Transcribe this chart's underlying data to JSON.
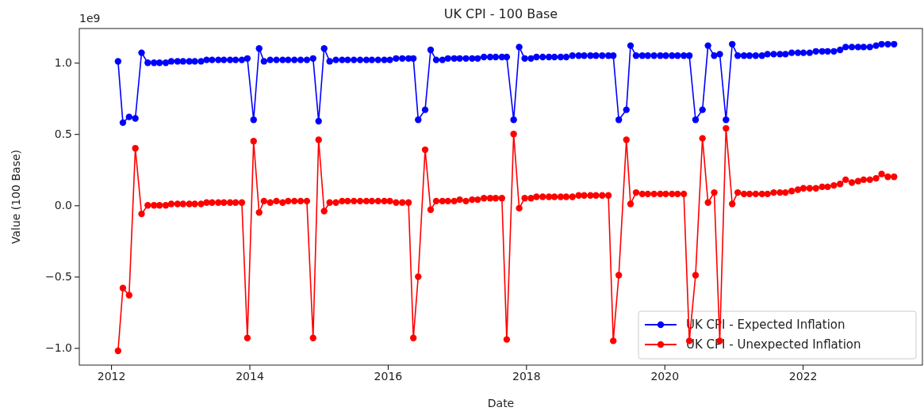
{
  "chart_data": {
    "type": "line",
    "title": "UK CPI - 100 Base",
    "xlabel": "Date",
    "ylabel": "Value (100 Base)",
    "annotations": [
      "1e9"
    ],
    "x": [
      2012.1,
      2012.17,
      2012.26,
      2012.35,
      2012.44,
      2012.53,
      2012.62,
      2012.7,
      2012.79,
      2012.87,
      2012.96,
      2013.04,
      2013.13,
      2013.21,
      2013.3,
      2013.38,
      2013.46,
      2013.55,
      2013.63,
      2013.72,
      2013.8,
      2013.89,
      2013.97,
      2014.06,
      2014.14,
      2014.21,
      2014.3,
      2014.39,
      2014.48,
      2014.56,
      2014.65,
      2014.74,
      2014.83,
      2014.92,
      2015.0,
      2015.08,
      2015.16,
      2015.25,
      2015.34,
      2015.42,
      2015.51,
      2015.6,
      2015.69,
      2015.77,
      2015.86,
      2015.95,
      2016.03,
      2016.12,
      2016.21,
      2016.3,
      2016.37,
      2016.44,
      2016.54,
      2016.62,
      2016.7,
      2016.79,
      2016.87,
      2016.96,
      2017.04,
      2017.13,
      2017.22,
      2017.3,
      2017.39,
      2017.48,
      2017.56,
      2017.65,
      2017.72,
      2017.82,
      2017.9,
      2017.98,
      2018.07,
      2018.15,
      2018.24,
      2018.33,
      2018.41,
      2018.5,
      2018.58,
      2018.67,
      2018.76,
      2018.84,
      2018.93,
      2019.01,
      2019.1,
      2019.19,
      2019.26,
      2019.34,
      2019.45,
      2019.51,
      2019.59,
      2019.68,
      2019.76,
      2019.85,
      2019.94,
      2020.02,
      2020.11,
      2020.19,
      2020.28,
      2020.36,
      2020.45,
      2020.55,
      2020.63,
      2020.72,
      2020.8,
      2020.89,
      2020.98,
      2021.06,
      2021.15,
      2021.23,
      2021.32,
      2021.41,
      2021.49,
      2021.58,
      2021.67,
      2021.75,
      2021.84,
      2021.93,
      2022.01,
      2022.1,
      2022.19,
      2022.28,
      2022.36,
      2022.45,
      2022.54,
      2022.62,
      2022.71,
      2022.8,
      2022.88,
      2022.97,
      2023.06,
      2023.14,
      2023.23,
      2023.32
    ],
    "series": [
      {
        "name": "UK CPI - Expected Inflation",
        "color": "#0000ff",
        "values": [
          1.01,
          0.58,
          0.62,
          0.61,
          1.07,
          1.0,
          1.0,
          1.0,
          1.0,
          1.01,
          1.01,
          1.01,
          1.01,
          1.01,
          1.01,
          1.02,
          1.02,
          1.02,
          1.02,
          1.02,
          1.02,
          1.02,
          1.03,
          0.6,
          1.1,
          1.01,
          1.02,
          1.02,
          1.02,
          1.02,
          1.02,
          1.02,
          1.02,
          1.03,
          0.59,
          1.1,
          1.01,
          1.02,
          1.02,
          1.02,
          1.02,
          1.02,
          1.02,
          1.02,
          1.02,
          1.02,
          1.02,
          1.03,
          1.03,
          1.03,
          1.03,
          0.6,
          0.67,
          1.09,
          1.02,
          1.02,
          1.03,
          1.03,
          1.03,
          1.03,
          1.03,
          1.03,
          1.04,
          1.04,
          1.04,
          1.04,
          1.04,
          0.6,
          1.11,
          1.03,
          1.03,
          1.04,
          1.04,
          1.04,
          1.04,
          1.04,
          1.04,
          1.05,
          1.05,
          1.05,
          1.05,
          1.05,
          1.05,
          1.05,
          1.05,
          0.6,
          0.67,
          1.12,
          1.05,
          1.05,
          1.05,
          1.05,
          1.05,
          1.05,
          1.05,
          1.05,
          1.05,
          1.05,
          0.6,
          0.67,
          1.12,
          1.05,
          1.06,
          0.6,
          1.13,
          1.05,
          1.05,
          1.05,
          1.05,
          1.05,
          1.06,
          1.06,
          1.06,
          1.06,
          1.07,
          1.07,
          1.07,
          1.07,
          1.08,
          1.08,
          1.08,
          1.08,
          1.09,
          1.11,
          1.11,
          1.11,
          1.11,
          1.11,
          1.12,
          1.13,
          1.13,
          1.13
        ]
      },
      {
        "name": "UK CPI - Unexpected Inflation",
        "color": "#ff0000",
        "values": [
          -1.02,
          -0.58,
          -0.63,
          0.4,
          -0.06,
          0.0,
          0.0,
          0.0,
          0.0,
          0.01,
          0.01,
          0.01,
          0.01,
          0.01,
          0.01,
          0.02,
          0.02,
          0.02,
          0.02,
          0.02,
          0.02,
          0.02,
          -0.93,
          0.45,
          -0.05,
          0.03,
          0.02,
          0.03,
          0.02,
          0.03,
          0.03,
          0.03,
          0.03,
          -0.93,
          0.46,
          -0.04,
          0.02,
          0.02,
          0.03,
          0.03,
          0.03,
          0.03,
          0.03,
          0.03,
          0.03,
          0.03,
          0.03,
          0.02,
          0.02,
          0.02,
          -0.93,
          -0.5,
          0.39,
          -0.03,
          0.03,
          0.03,
          0.03,
          0.03,
          0.04,
          0.03,
          0.04,
          0.04,
          0.05,
          0.05,
          0.05,
          0.05,
          -0.94,
          0.5,
          -0.02,
          0.05,
          0.05,
          0.06,
          0.06,
          0.06,
          0.06,
          0.06,
          0.06,
          0.06,
          0.07,
          0.07,
          0.07,
          0.07,
          0.07,
          0.07,
          -0.95,
          -0.49,
          0.46,
          0.01,
          0.09,
          0.08,
          0.08,
          0.08,
          0.08,
          0.08,
          0.08,
          0.08,
          0.08,
          -0.95,
          -0.49,
          0.47,
          0.02,
          0.09,
          -0.95,
          0.54,
          0.01,
          0.09,
          0.08,
          0.08,
          0.08,
          0.08,
          0.08,
          0.09,
          0.09,
          0.09,
          0.1,
          0.11,
          0.12,
          0.12,
          0.12,
          0.13,
          0.13,
          0.14,
          0.15,
          0.18,
          0.16,
          0.17,
          0.18,
          0.18,
          0.19,
          0.22,
          0.2,
          0.2
        ]
      }
    ],
    "xlim": [
      2011.54,
      2023.73
    ],
    "xticks": [
      2012,
      2014,
      2016,
      2018,
      2020,
      2022
    ],
    "ylim": [
      -1.12,
      1.24
    ],
    "yticks": [
      {
        "value": -1,
        "label": "−1.0"
      },
      {
        "value": -0.5,
        "label": "−0.5"
      },
      {
        "value": 0,
        "label": "0.0"
      },
      {
        "value": 0.5,
        "label": "0.5"
      },
      {
        "value": 1,
        "label": "1.0"
      }
    ],
    "marker": "circle",
    "line_style": "solid",
    "legend": "bottom right",
    "grid": false
  }
}
